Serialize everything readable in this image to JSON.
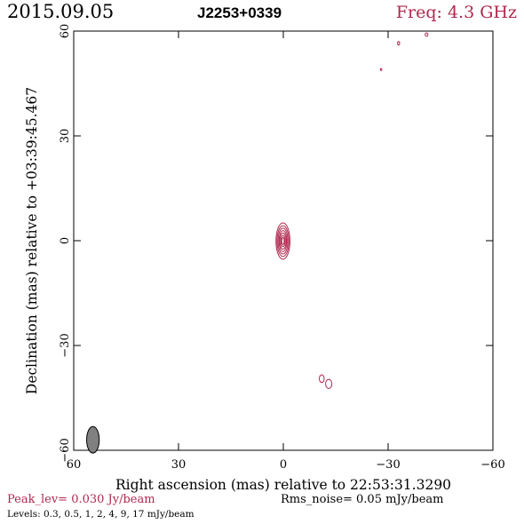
{
  "header": {
    "date": "2015.09.05",
    "source": "J2253+0339",
    "freq": "Freq: 4.3 GHz"
  },
  "footer": {
    "peak": "Peak_lev=  0.030 Jy/beam",
    "rms": "Rms_noise= 0.05 mJy/beam",
    "levels": "Levels: 0.3,  0.5,    1,    2,    4,    9,   17  mJy/beam"
  },
  "colors": {
    "contour": "#b0284e",
    "axes": "#000000",
    "beam_fill": "#808080"
  },
  "chart_data": {
    "type": "contour",
    "xlabel": "Right ascension (mas) relative to 22:53:31.3290",
    "ylabel": "Declination (mas) relative to +03:39:45.467",
    "xlim": [
      60,
      -60
    ],
    "ylim": [
      -60,
      60
    ],
    "x_ticks": [
      60,
      30,
      0,
      -30,
      -60
    ],
    "y_ticks": [
      -60,
      -30,
      0,
      30,
      60
    ],
    "x_tick_labels": [
      "60",
      "30",
      "0",
      "−30",
      "−60"
    ],
    "y_tick_labels": [
      "−60",
      "−30",
      "0",
      "30",
      "60"
    ],
    "components": [
      {
        "name": "core",
        "x": 0.1,
        "y": -0.1,
        "levels_mjy": [
          0.3,
          0.5,
          1,
          2,
          4,
          9,
          17
        ],
        "semi_major_mas": [
          5.2,
          4.4,
          3.7,
          3.0,
          2.3,
          1.6,
          1.0
        ],
        "semi_minor_mas": [
          2.0,
          1.7,
          1.4,
          1.1,
          0.9,
          0.6,
          0.35
        ]
      },
      {
        "name": "blob-1",
        "x": -11.0,
        "y": -39.5,
        "levels_mjy": [
          0.3
        ],
        "semi_major_mas": [
          1.1
        ],
        "semi_minor_mas": [
          0.7
        ]
      },
      {
        "name": "blob-2",
        "x": -13.0,
        "y": -41.0,
        "levels_mjy": [
          0.3
        ],
        "semi_major_mas": [
          1.3
        ],
        "semi_minor_mas": [
          0.9
        ]
      },
      {
        "name": "blob-3",
        "x": -33.0,
        "y": 56.5,
        "levels_mjy": [
          0.3
        ],
        "semi_major_mas": [
          0.5
        ],
        "semi_minor_mas": [
          0.3
        ]
      },
      {
        "name": "blob-4",
        "x": -41.0,
        "y": 59.0,
        "levels_mjy": [
          0.3
        ],
        "semi_major_mas": [
          0.5
        ],
        "semi_minor_mas": [
          0.4
        ]
      },
      {
        "name": "blob-5",
        "x": -28.0,
        "y": 49.0,
        "levels_mjy": [
          0.3
        ],
        "semi_major_mas": [
          0.3
        ],
        "semi_minor_mas": [
          0.2
        ]
      }
    ],
    "beam": {
      "x": 54.5,
      "y": -57.0,
      "major_mas": 3.8,
      "minor_mas": 1.8
    }
  }
}
